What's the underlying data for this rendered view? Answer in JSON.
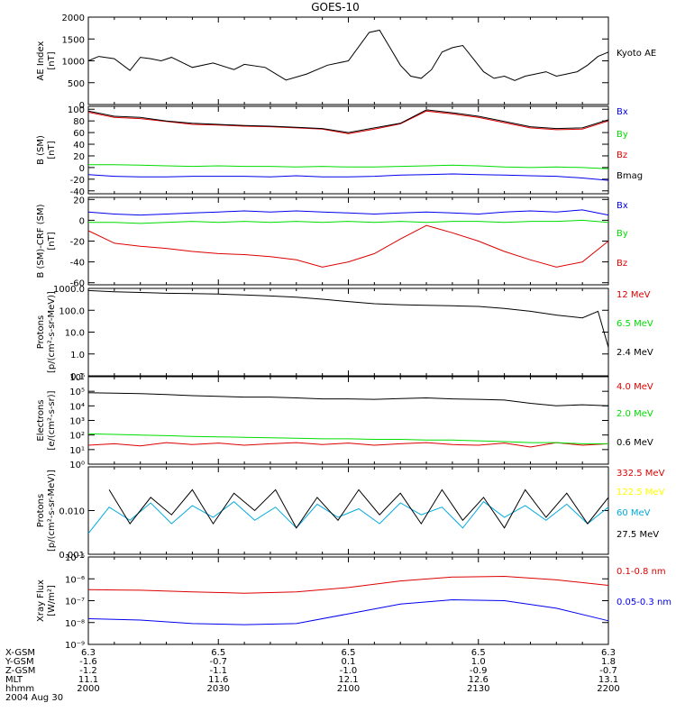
{
  "title": "GOES-10",
  "colors": {
    "black": "#000000",
    "red": "#dd0000",
    "green": "#00dd00",
    "blue": "#0000ee",
    "yellow": "#ffff00",
    "cyan": "#00aadd"
  },
  "time_axis": {
    "ticks": [
      "2000",
      "2030",
      "2100",
      "2130",
      "2200"
    ],
    "rows": [
      {
        "label": "X-GSM",
        "values": [
          "6.3",
          "6.5",
          "6.5",
          "6.5",
          "6.3"
        ]
      },
      {
        "label": "Y-GSM",
        "values": [
          "-1.6",
          "-0.7",
          "0.1",
          "1.0",
          "1.8"
        ]
      },
      {
        "label": "Z-GSM",
        "values": [
          "-1.2",
          "-1.1",
          "-1.0",
          "-0.9",
          "-0.7"
        ]
      },
      {
        "label": "MLT",
        "values": [
          "11.1",
          "11.6",
          "12.1",
          "12.6",
          "13.1"
        ]
      },
      {
        "label": "hhmm",
        "values": [
          "2000",
          "2030",
          "2100",
          "2130",
          "2200"
        ]
      }
    ],
    "date": "2004 Aug 30"
  },
  "chart_data": [
    {
      "type": "line",
      "ylabel": [
        "AE Index",
        "[nT]"
      ],
      "scale": "linear",
      "ylim": [
        0,
        2000
      ],
      "yticks": [
        {
          "v": 0,
          "t": "0"
        },
        {
          "v": 500,
          "t": "500"
        },
        {
          "v": 1000,
          "t": "1000"
        },
        {
          "v": 1500,
          "t": "1500"
        },
        {
          "v": 2000,
          "t": "2000"
        }
      ],
      "x": [
        0,
        2,
        5,
        8,
        10,
        12,
        14,
        16,
        20,
        24,
        28,
        30,
        34,
        38,
        42,
        46,
        50,
        54,
        56,
        58,
        60,
        62,
        64,
        66,
        68,
        70,
        72,
        74,
        76,
        78,
        80,
        82,
        84,
        86,
        88,
        90,
        92,
        94,
        96,
        98,
        100
      ],
      "series": [
        {
          "name": "Kyoto AE",
          "color": "#000000",
          "values": [
            1000,
            1100,
            1050,
            780,
            1080,
            1050,
            1000,
            1080,
            850,
            950,
            800,
            920,
            850,
            560,
            700,
            900,
            1000,
            1650,
            1700,
            1300,
            900,
            650,
            600,
            800,
            1200,
            1300,
            1350,
            1050,
            750,
            600,
            650,
            550,
            650,
            700,
            750,
            650,
            700,
            750,
            900,
            1100,
            1200
          ]
        }
      ]
    },
    {
      "type": "line",
      "ylabel": [
        "B (SM)",
        "[nT]"
      ],
      "scale": "linear",
      "ylim": [
        -45,
        105
      ],
      "yticks": [
        {
          "v": -40,
          "t": "-40"
        },
        {
          "v": -20,
          "t": "-20"
        },
        {
          "v": 0,
          "t": "0"
        },
        {
          "v": 20,
          "t": "20"
        },
        {
          "v": 40,
          "t": "40"
        },
        {
          "v": 60,
          "t": "60"
        },
        {
          "v": 80,
          "t": "80"
        },
        {
          "v": 100,
          "t": "100"
        }
      ],
      "x": [
        0,
        5,
        10,
        15,
        20,
        25,
        30,
        35,
        40,
        45,
        50,
        55,
        60,
        65,
        70,
        75,
        80,
        85,
        90,
        95,
        100
      ],
      "series": [
        {
          "name": "Bx",
          "color": "#0000ee",
          "values": [
            -12,
            -15,
            -16,
            -16,
            -15,
            -15,
            -15,
            -16,
            -14,
            -16,
            -16,
            -15,
            -13,
            -12,
            -11,
            -12,
            -13,
            -14,
            -15,
            -18,
            -22
          ]
        },
        {
          "name": "By",
          "color": "#00dd00",
          "values": [
            5,
            5,
            4,
            3,
            2,
            3,
            2,
            2,
            1,
            2,
            1,
            1,
            2,
            3,
            4,
            3,
            1,
            0,
            1,
            0,
            -2
          ]
        },
        {
          "name": "Bz",
          "color": "#dd0000",
          "values": [
            95,
            86,
            84,
            79,
            74,
            73,
            71,
            70,
            68,
            66,
            58,
            66,
            75,
            97,
            92,
            86,
            77,
            68,
            65,
            66,
            80
          ]
        },
        {
          "name": "Bmag",
          "color": "#000000",
          "values": [
            97,
            88,
            86,
            80,
            76,
            74,
            72,
            71,
            69,
            67,
            60,
            68,
            76,
            99,
            94,
            88,
            79,
            70,
            67,
            68,
            82
          ]
        }
      ]
    },
    {
      "type": "line",
      "ylabel": [
        "B (SM)-CRF (SM)",
        "[nT]"
      ],
      "scale": "linear",
      "ylim": [
        -62,
        22
      ],
      "yticks": [
        {
          "v": -60,
          "t": "-60"
        },
        {
          "v": -40,
          "t": "-40"
        },
        {
          "v": -20,
          "t": "-20"
        },
        {
          "v": 0,
          "t": "0"
        },
        {
          "v": 20,
          "t": "20"
        }
      ],
      "x": [
        0,
        5,
        10,
        15,
        20,
        25,
        30,
        35,
        40,
        45,
        50,
        55,
        60,
        65,
        70,
        75,
        80,
        85,
        90,
        95,
        100
      ],
      "series": [
        {
          "name": "Bx",
          "color": "#0000ee",
          "values": [
            8,
            6,
            5,
            6,
            7,
            8,
            9,
            8,
            9,
            8,
            7,
            6,
            7,
            8,
            7,
            6,
            8,
            9,
            8,
            10,
            5
          ]
        },
        {
          "name": "By",
          "color": "#00dd00",
          "values": [
            -2,
            -2,
            -3,
            -2,
            -1,
            -2,
            -1,
            -2,
            -1,
            -2,
            -1,
            -2,
            -1,
            -2,
            -1,
            -1,
            -2,
            -1,
            -1,
            0,
            -2
          ]
        },
        {
          "name": "Bz",
          "color": "#dd0000",
          "values": [
            -10,
            -22,
            -25,
            -27,
            -30,
            -32,
            -33,
            -35,
            -38,
            -45,
            -40,
            -32,
            -18,
            -5,
            -12,
            -20,
            -30,
            -38,
            -45,
            -40,
            -20
          ]
        }
      ]
    },
    {
      "type": "line",
      "ylabel": [
        "Protons",
        "[p/(cm²-s-sr-MeV)]"
      ],
      "scale": "log",
      "ylim": [
        0.1,
        1000
      ],
      "yticks": [
        {
          "v": 0.1,
          "t": "0.1"
        },
        {
          "v": 1,
          "t": "1.0"
        },
        {
          "v": 10,
          "t": "10.0"
        },
        {
          "v": 100,
          "t": "100.0"
        },
        {
          "v": 1000,
          "t": "1000.0"
        }
      ],
      "x": [
        0,
        5,
        10,
        15,
        20,
        25,
        30,
        35,
        40,
        45,
        50,
        55,
        60,
        65,
        70,
        75,
        80,
        85,
        90,
        95,
        98,
        100
      ],
      "series": [
        {
          "name": "12 MeV",
          "color": "#dd0000",
          "values": [
            null,
            null,
            null,
            null,
            null,
            null,
            null,
            null,
            null,
            null,
            null,
            null,
            null,
            null,
            null,
            null,
            null,
            null,
            null,
            null,
            null,
            null
          ]
        },
        {
          "name": "6.5 MeV",
          "color": "#00dd00",
          "values": [
            null,
            null,
            null,
            null,
            null,
            null,
            null,
            null,
            null,
            null,
            null,
            null,
            null,
            null,
            null,
            null,
            null,
            null,
            null,
            null,
            null,
            null
          ]
        },
        {
          "name": "2.4 MeV",
          "color": "#000000",
          "values": [
            800,
            700,
            650,
            600,
            580,
            550,
            500,
            450,
            400,
            320,
            250,
            200,
            180,
            170,
            160,
            150,
            120,
            90,
            60,
            45,
            90,
            2
          ]
        }
      ]
    },
    {
      "type": "line",
      "ylabel": [
        "Electrons",
        "[e/(cm²-s-sr)]"
      ],
      "scale": "log",
      "ylim": [
        1,
        1000000
      ],
      "yticks": [
        {
          "v": 1,
          "t": "10⁰"
        },
        {
          "v": 10,
          "t": "10¹"
        },
        {
          "v": 100,
          "t": "10²"
        },
        {
          "v": 1000,
          "t": "10³"
        },
        {
          "v": 10000,
          "t": "10⁴"
        },
        {
          "v": 100000,
          "t": "10⁵"
        },
        {
          "v": 1000000,
          "t": "10⁶"
        }
      ],
      "x": [
        0,
        5,
        10,
        15,
        20,
        25,
        30,
        35,
        40,
        45,
        50,
        55,
        60,
        65,
        70,
        75,
        80,
        85,
        90,
        95,
        100
      ],
      "series": [
        {
          "name": "4.0 MeV",
          "color": "#dd0000",
          "values": [
            20,
            25,
            18,
            30,
            22,
            28,
            20,
            25,
            30,
            22,
            28,
            20,
            25,
            30,
            22,
            20,
            28,
            15,
            30,
            20,
            25
          ]
        },
        {
          "name": "2.0 MeV",
          "color": "#00dd00",
          "values": [
            120,
            110,
            100,
            90,
            80,
            75,
            70,
            65,
            60,
            55,
            55,
            50,
            50,
            45,
            45,
            40,
            35,
            30,
            30,
            25,
            25
          ]
        },
        {
          "name": "0.6 MeV",
          "color": "#000000",
          "values": [
            80000,
            75000,
            70000,
            60000,
            50000,
            45000,
            40000,
            40000,
            35000,
            30000,
            30000,
            28000,
            32000,
            35000,
            30000,
            28000,
            25000,
            15000,
            10000,
            12000,
            10000
          ]
        }
      ]
    },
    {
      "type": "line",
      "ylabel": [
        "Protons",
        "[p/(cm²-s-sr-MeV)]"
      ],
      "scale": "log",
      "ylim": [
        0.001,
        0.1
      ],
      "yticks": [
        {
          "v": 0.001,
          "t": "0.001"
        },
        {
          "v": 0.01,
          "t": "0.010"
        },
        {
          "v": 0.1,
          "t": ""
        }
      ],
      "x": [
        0,
        4,
        8,
        12,
        16,
        20,
        24,
        28,
        32,
        36,
        40,
        44,
        48,
        52,
        56,
        60,
        64,
        68,
        72,
        76,
        80,
        84,
        88,
        92,
        96,
        100
      ],
      "series": [
        {
          "name": "332.5 MeV",
          "color": "#dd0000",
          "values": [
            null,
            null,
            null,
            null,
            null,
            null,
            null,
            null,
            null,
            null,
            null,
            null,
            null,
            null,
            null,
            null,
            null,
            null,
            null,
            null,
            null,
            null,
            null,
            null,
            null,
            null
          ]
        },
        {
          "name": "122.5 MeV",
          "color": "#ffff00",
          "values": [
            null,
            null,
            null,
            null,
            null,
            null,
            null,
            null,
            null,
            null,
            null,
            null,
            null,
            null,
            null,
            null,
            null,
            null,
            null,
            null,
            null,
            null,
            null,
            null,
            null,
            null
          ]
        },
        {
          "name": "60 MeV",
          "color": "#00aadd",
          "values": [
            0.003,
            0.012,
            0.006,
            0.015,
            0.005,
            0.013,
            0.007,
            0.016,
            0.006,
            0.012,
            0.004,
            0.014,
            0.007,
            0.011,
            0.005,
            0.015,
            0.008,
            0.012,
            0.004,
            0.016,
            0.007,
            0.013,
            0.006,
            0.014,
            0.005,
            0.012
          ]
        },
        {
          "name": "27.5 MeV",
          "color": "#000000",
          "values": [
            null,
            0.03,
            0.005,
            0.02,
            0.008,
            0.03,
            0.005,
            0.025,
            0.01,
            0.03,
            0.004,
            0.02,
            0.006,
            0.03,
            0.008,
            0.025,
            0.005,
            0.03,
            0.006,
            0.02,
            0.004,
            0.03,
            0.007,
            0.025,
            0.005,
            0.02
          ]
        }
      ]
    },
    {
      "type": "line",
      "ylabel": [
        "Xray Flux",
        "[W/m²]"
      ],
      "scale": "log",
      "ylim": [
        1e-09,
        1e-05
      ],
      "yticks": [
        {
          "v": 1e-09,
          "t": "10⁻⁹"
        },
        {
          "v": 1e-08,
          "t": "10⁻⁸"
        },
        {
          "v": 1e-07,
          "t": "10⁻⁷"
        },
        {
          "v": 1e-06,
          "t": "10⁻⁶"
        },
        {
          "v": 1e-05,
          "t": "10⁻⁵"
        }
      ],
      "x": [
        0,
        10,
        20,
        30,
        40,
        50,
        60,
        70,
        80,
        90,
        100
      ],
      "series": [
        {
          "name": "0.1-0.8 nm",
          "color": "#dd0000",
          "values": [
            3.2e-07,
            3e-07,
            2.5e-07,
            2.2e-07,
            2.5e-07,
            4e-07,
            8e-07,
            1.2e-06,
            1.3e-06,
            9e-07,
            5e-07
          ]
        },
        {
          "name": "0.05-0.3 nm",
          "color": "#0000ee",
          "values": [
            1.5e-08,
            1.3e-08,
            9e-09,
            8e-09,
            9e-09,
            2.5e-08,
            7e-08,
            1.1e-07,
            1e-07,
            4.5e-08,
            1.2e-08
          ]
        }
      ]
    }
  ]
}
